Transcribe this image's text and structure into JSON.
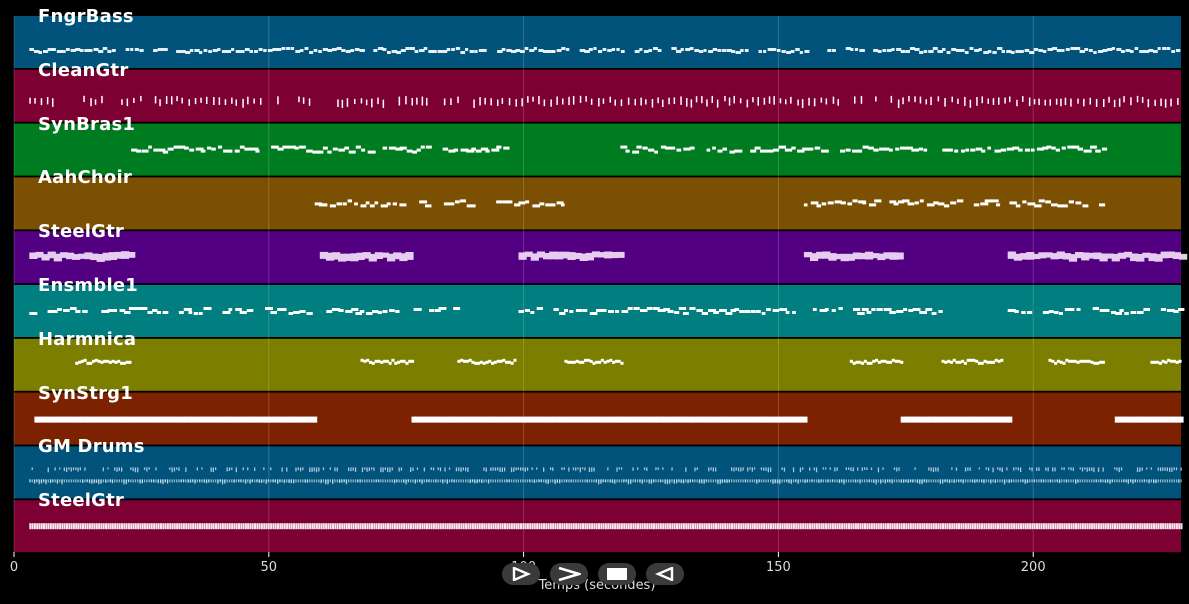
{
  "tracks": [
    {
      "name": "FngrBass",
      "color": "#01537c",
      "pattern": "bass"
    },
    {
      "name": "CleanGtr",
      "color": "#7d0032",
      "pattern": "strum"
    },
    {
      "name": "SynBras1",
      "color": "#007c20",
      "pattern": "melody"
    },
    {
      "name": "AahChoir",
      "color": "#7c5002",
      "pattern": "melody"
    },
    {
      "name": "SteelGtr",
      "color": "#520081",
      "pattern": "chord"
    },
    {
      "name": "Ensmble1",
      "color": "#017e7f",
      "pattern": "melody"
    },
    {
      "name": "Harmnica",
      "color": "#7c7e00",
      "pattern": "phrase"
    },
    {
      "name": "SynStrg1",
      "color": "#7d2200",
      "pattern": "sustain"
    },
    {
      "name": "GM Drums",
      "color": "#01537c",
      "pattern": "drums"
    },
    {
      "name": "SteelGtr",
      "color": "#7d0032",
      "pattern": "dense"
    }
  ],
  "axis": {
    "xlabel": "Temps (secondes)",
    "xlim": [
      0,
      229
    ],
    "ticks": [
      0,
      50,
      100,
      150,
      200
    ],
    "grid": true
  },
  "controls": [
    {
      "name": "play-icon"
    },
    {
      "name": "fast-forward-icon"
    },
    {
      "name": "stop-icon"
    },
    {
      "name": "rewind-icon"
    }
  ],
  "activity": [
    [
      [
        3,
        229
      ]
    ],
    [
      [
        3,
        229
      ]
    ],
    [
      [
        23,
        97
      ],
      [
        119,
        214
      ]
    ],
    [
      [
        59,
        108
      ],
      [
        155,
        214
      ]
    ],
    [
      [
        3,
        23
      ],
      [
        60,
        78
      ],
      [
        99,
        119
      ],
      [
        155,
        174
      ],
      [
        195,
        229
      ]
    ],
    [
      [
        3,
        87
      ],
      [
        99,
        182
      ],
      [
        195,
        229
      ]
    ],
    [
      [
        12,
        23
      ],
      [
        68,
        78
      ],
      [
        87,
        98
      ],
      [
        108,
        119
      ],
      [
        164,
        174
      ],
      [
        182,
        194
      ],
      [
        203,
        214
      ],
      [
        223,
        229
      ]
    ],
    [
      [
        4,
        59
      ],
      [
        78,
        155
      ],
      [
        174,
        195
      ],
      [
        216,
        229
      ]
    ],
    [
      [
        3,
        229
      ]
    ],
    [
      [
        3,
        229
      ]
    ]
  ]
}
